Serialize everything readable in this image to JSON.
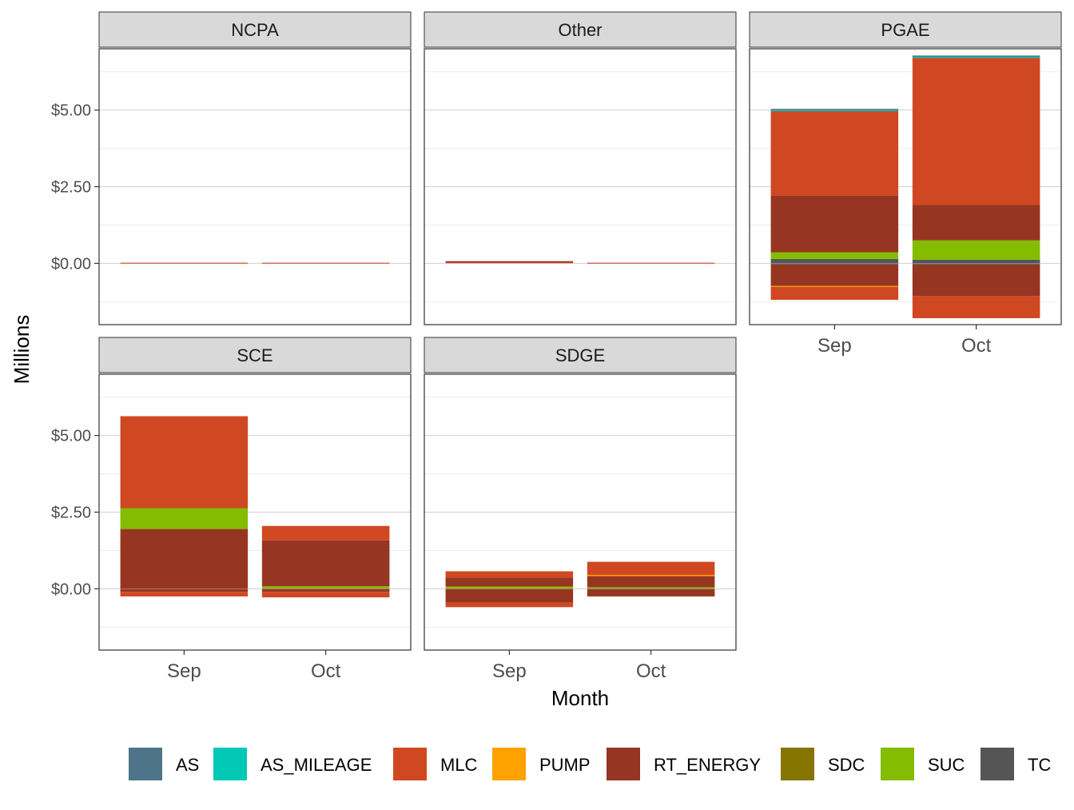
{
  "chart_data": {
    "type": "bar",
    "stacked": true,
    "facet_by": "Region",
    "xlabel": "Month",
    "ylabel": "Millions",
    "ylim": [
      -2.0,
      7.0
    ],
    "y_ticks": [
      0.0,
      2.5,
      5.0
    ],
    "y_tick_labels": [
      "$0.00",
      "$2.50",
      "$5.00"
    ],
    "categories": [
      "Sep",
      "Oct"
    ],
    "grid": true,
    "legend_position": "bottom",
    "series_order": [
      "AS",
      "AS_MILEAGE",
      "MLC",
      "PUMP",
      "RT_ENERGY",
      "SDC",
      "SUC",
      "TC"
    ],
    "colors": {
      "AS": "#4e7489",
      "AS_MILEAGE": "#00c8b4",
      "MLC": "#d04822",
      "PUMP": "#ffa200",
      "RT_ENERGY": "#963522",
      "SDC": "#857500",
      "SUC": "#84bc00",
      "TC": "#555555"
    },
    "facets": [
      {
        "name": "NCPA",
        "bars": {
          "Sep": {
            "MLC": 0.02
          },
          "Oct": {
            "MLC": 0.02
          }
        }
      },
      {
        "name": "Other",
        "bars": {
          "Sep": {
            "MLC": 0.05,
            "RT_ENERGY": 0.02
          },
          "Oct": {
            "MLC": 0.02
          }
        }
      },
      {
        "name": "PGAE",
        "bars": {
          "Sep": {
            "TC": 0.14,
            "SUC": 0.22,
            "RT_ENERGY": 1.85,
            "MLC": 2.77,
            "AS_MILEAGE": 0.02,
            "AS": 0.04
          },
          "Oct": {
            "TC": 0.12,
            "SUC": 0.63,
            "RT_ENERGY": 1.15,
            "MLC": 4.8,
            "AS_MILEAGE": 0.04,
            "AS": 0.04
          },
          "Sep_negative": {
            "TC": -0.04,
            "RT_ENERGY": -0.7,
            "PUMP": -0.03,
            "MLC": -0.42
          },
          "Oct_negative": {
            "TC": -0.04,
            "RT_ENERGY": -1.03,
            "MLC": -0.72
          }
        }
      },
      {
        "name": "SCE",
        "bars": {
          "Sep": {
            "RT_ENERGY": 1.95,
            "SUC": 0.68,
            "MLC": 3.0
          },
          "Oct": {
            "SUC": 0.08,
            "RT_ENERGY": 1.5,
            "MLC": 0.47
          },
          "Sep_negative": {
            "RT_ENERGY": -0.1,
            "MLC": -0.15
          },
          "Oct_negative": {
            "RT_ENERGY": -0.1,
            "MLC": -0.18
          }
        }
      },
      {
        "name": "SDGE",
        "bars": {
          "Sep": {
            "SUC": 0.07,
            "RT_ENERGY": 0.3,
            "MLC": 0.2
          },
          "Oct": {
            "SUC": 0.05,
            "RT_ENERGY": 0.38,
            "PUMP": 0.02,
            "MLC": 0.43
          },
          "Sep_negative": {
            "RT_ENERGY": -0.45,
            "MLC": -0.15
          },
          "Oct_negative": {
            "RT_ENERGY": -0.25
          }
        }
      }
    ]
  }
}
